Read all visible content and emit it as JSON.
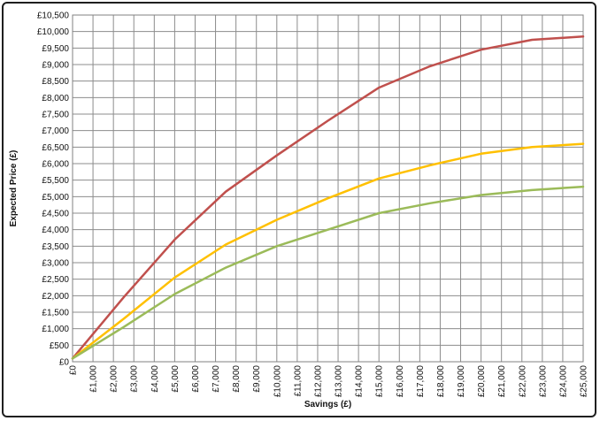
{
  "chart_data": {
    "type": "line",
    "title": "",
    "xlabel": "Savings (£)",
    "ylabel": "Expected Price (£)",
    "xlim": [
      0,
      25000
    ],
    "ylim": [
      0,
      10500
    ],
    "x_ticks": [
      "£0",
      "£1,000",
      "£2,000",
      "£3,000",
      "£4,000",
      "£5,000",
      "£6,000",
      "£7,000",
      "£8,000",
      "£9,000",
      "£10,000",
      "£11,000",
      "£12,000",
      "£13,000",
      "£14,000",
      "£15,000",
      "£16,000",
      "£17,000",
      "£18,000",
      "£19,000",
      "£20,000",
      "£21,000",
      "£22,000",
      "£23,000",
      "£24,000",
      "£25,000"
    ],
    "y_ticks": [
      "£0",
      "£500",
      "£1,000",
      "£1,500",
      "£2,000",
      "£2,500",
      "£3,000",
      "£3,500",
      "£4,000",
      "£4,500",
      "£5,000",
      "£5,500",
      "£6,000",
      "£6,500",
      "£7,000",
      "£7,500",
      "£8,000",
      "£8,500",
      "£9,000",
      "£9,500",
      "£10,000",
      "£10,500"
    ],
    "grid": true,
    "legend": "none",
    "x": [
      0,
      2500,
      5000,
      7500,
      10000,
      12500,
      15000,
      17500,
      20000,
      22500,
      25000
    ],
    "series": [
      {
        "color": "#c0504d",
        "values": [
          100,
          1950,
          3700,
          5150,
          6250,
          7300,
          8300,
          8950,
          9450,
          9750,
          9850
        ]
      },
      {
        "color": "#ffc000",
        "values": [
          100,
          1300,
          2550,
          3550,
          4300,
          4950,
          5550,
          5950,
          6300,
          6500,
          6600
        ]
      },
      {
        "color": "#9bbb59",
        "values": [
          100,
          1050,
          2050,
          2850,
          3500,
          4000,
          4500,
          4800,
          5050,
          5200,
          5300
        ]
      }
    ]
  }
}
